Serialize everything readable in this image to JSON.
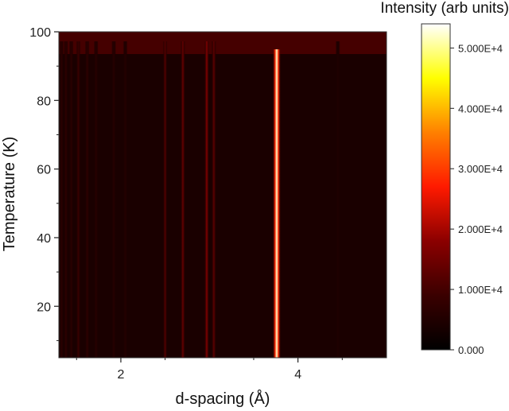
{
  "chart_data": {
    "type": "heatmap",
    "title": "",
    "xlabel": "d-spacing (Å)",
    "ylabel": "Temperature (K)",
    "xlim": [
      1.3,
      5.0
    ],
    "ylim": [
      5,
      100
    ],
    "x_ticks": [
      2,
      4
    ],
    "y_ticks": [
      20,
      40,
      60,
      80,
      100
    ],
    "background_intensity": 4000,
    "peaks": [
      {
        "d": 1.33,
        "intensity": 6500,
        "width": 0.012
      },
      {
        "d": 1.38,
        "intensity": 7000,
        "width": 0.012
      },
      {
        "d": 1.44,
        "intensity": 6500,
        "width": 0.012
      },
      {
        "d": 1.52,
        "intensity": 9000,
        "width": 0.012
      },
      {
        "d": 1.62,
        "intensity": 7000,
        "width": 0.012
      },
      {
        "d": 1.72,
        "intensity": 6000,
        "width": 0.012
      },
      {
        "d": 1.92,
        "intensity": 6000,
        "width": 0.012
      },
      {
        "d": 2.05,
        "intensity": 5500,
        "width": 0.012
      },
      {
        "d": 2.5,
        "intensity": 12000,
        "width": 0.012
      },
      {
        "d": 2.7,
        "intensity": 14000,
        "width": 0.013
      },
      {
        "d": 2.97,
        "intensity": 17000,
        "width": 0.013
      },
      {
        "d": 3.05,
        "intensity": 13000,
        "width": 0.013
      },
      {
        "d": 3.76,
        "intensity": 52000,
        "width": 0.022
      },
      {
        "d": 4.45,
        "intensity": 4700,
        "width": 0.012
      }
    ],
    "colorbar": {
      "title": "Intensity (arb units)",
      "min": 0,
      "max": 54000,
      "ticks": [
        {
          "value": 0,
          "label": "0.000"
        },
        {
          "value": 10000,
          "label": "1.000E+4"
        },
        {
          "value": 20000,
          "label": "2.000E+4"
        },
        {
          "value": 30000,
          "label": "3.000E+4"
        },
        {
          "value": 40000,
          "label": "4.000E+4"
        },
        {
          "value": 50000,
          "label": "5.000E+4"
        }
      ],
      "colormap": [
        "#000000",
        "#3a0000",
        "#8b0000",
        "#ff1a00",
        "#ff8000",
        "#ffff00",
        "#ffffff"
      ]
    }
  }
}
